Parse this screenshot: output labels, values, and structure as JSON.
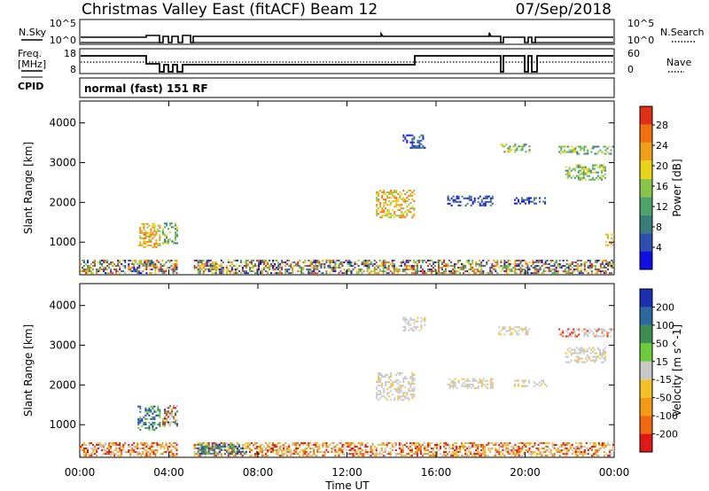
{
  "header": {
    "station": "Christmas Valley East (fitACF)",
    "beam": "Beam 12",
    "date": "07/Sep/2018"
  },
  "status_panels": {
    "nsky_label": "N.Sky",
    "nsearch_label": "N.Search",
    "noise_ticks_left": [
      "10^5",
      "10^0"
    ],
    "noise_ticks_right": [
      "10^5",
      "10^0"
    ],
    "freq_label_line1": "Freq.",
    "freq_label_line2": "[MHz]",
    "freq_ticks": [
      "18",
      "8"
    ],
    "nave_label": "Nave",
    "nave_ticks": [
      "60",
      "0"
    ],
    "cpid_label": "CPID",
    "cpid_value": "normal (fast) 151 RF"
  },
  "colors": {
    "power": [
      "#1010e0",
      "#2d4fb0",
      "#3a7e7a",
      "#4ea36a",
      "#88c34a",
      "#e8d21a",
      "#f0a018",
      "#f07010",
      "#e03018"
    ],
    "velocity": [
      "#1c2fb0",
      "#2a6a9e",
      "#3d8c50",
      "#6ccb3a",
      "#c8c8c8",
      "#f2c028",
      "#f39a18",
      "#ef6a10",
      "#e01818"
    ],
    "line": "#000000"
  },
  "chart_data": [
    {
      "type": "heatmap",
      "title": "",
      "xlabel": "",
      "ylabel": "Slant Range [km]",
      "x_ticks": [
        "00:00",
        "04:00",
        "08:00",
        "12:00",
        "16:00",
        "20:00",
        "00:00"
      ],
      "xlim": [
        0,
        24
      ],
      "ylim": [
        180,
        4550
      ],
      "y_ticks": [
        "1000",
        "2000",
        "3000",
        "4000"
      ],
      "colorbar_label": "Power [dB]",
      "colorbar_ticks": [
        "4",
        "8",
        "12",
        "16",
        "20",
        "24",
        "28"
      ],
      "colorbar_range": [
        0,
        30
      ],
      "regions": [
        {
          "t": [
            0.0,
            24.0
          ],
          "r": [
            200,
            520
          ],
          "level": "mixed"
        },
        {
          "t": [
            2.6,
            3.6
          ],
          "r": [
            850,
            1450
          ],
          "level": "high"
        },
        {
          "t": [
            3.7,
            4.4
          ],
          "r": [
            950,
            1450
          ],
          "level": "mid"
        },
        {
          "t": [
            5.2,
            6.3
          ],
          "r": [
            300,
            430
          ],
          "level": "high"
        },
        {
          "t": [
            13.3,
            15.0
          ],
          "r": [
            1600,
            2300
          ],
          "level": "high"
        },
        {
          "t": [
            16.5,
            18.5
          ],
          "r": [
            1900,
            2150
          ],
          "level": "low"
        },
        {
          "t": [
            18.8,
            20.2
          ],
          "r": [
            3250,
            3450
          ],
          "level": "mid"
        },
        {
          "t": [
            21.5,
            23.9
          ],
          "r": [
            3200,
            3400
          ],
          "level": "mid"
        },
        {
          "t": [
            21.8,
            23.6
          ],
          "r": [
            2550,
            2950
          ],
          "level": "mid"
        },
        {
          "t": [
            19.5,
            21.0
          ],
          "r": [
            1950,
            2100
          ],
          "level": "low"
        },
        {
          "t": [
            14.5,
            15.5
          ],
          "r": [
            3350,
            3700
          ],
          "level": "low"
        },
        {
          "t": [
            23.6,
            24.0
          ],
          "r": [
            900,
            1200
          ],
          "level": "high"
        }
      ]
    },
    {
      "type": "heatmap",
      "title": "",
      "xlabel": "Time UT",
      "ylabel": "Slant Range [km]",
      "x_ticks": [
        "00:00",
        "04:00",
        "08:00",
        "12:00",
        "16:00",
        "20:00",
        "00:00"
      ],
      "xlim": [
        0,
        24
      ],
      "ylim": [
        180,
        4550
      ],
      "y_ticks": [
        "1000",
        "2000",
        "3000",
        "4000"
      ],
      "colorbar_label": "Velocity [m s^-1]",
      "colorbar_ticks": [
        "200",
        "100",
        "50",
        "15",
        "-15",
        "-50",
        "-100",
        "-200"
      ],
      "colorbar_range": [
        -250,
        250
      ],
      "regions": [
        {
          "t": [
            0.0,
            24.0
          ],
          "r": [
            200,
            560
          ],
          "level": "negative"
        },
        {
          "t": [
            2.6,
            3.6
          ],
          "r": [
            850,
            1450
          ],
          "level": "positive"
        },
        {
          "t": [
            3.7,
            4.4
          ],
          "r": [
            950,
            1450
          ],
          "level": "mixed"
        },
        {
          "t": [
            5.2,
            7.5
          ],
          "r": [
            250,
            480
          ],
          "level": "positive"
        },
        {
          "t": [
            13.3,
            15.0
          ],
          "r": [
            1600,
            2300
          ],
          "level": "zero"
        },
        {
          "t": [
            16.5,
            18.5
          ],
          "r": [
            1900,
            2150
          ],
          "level": "zero"
        },
        {
          "t": [
            18.8,
            20.2
          ],
          "r": [
            3250,
            3450
          ],
          "level": "zero"
        },
        {
          "t": [
            21.5,
            23.9
          ],
          "r": [
            3200,
            3400
          ],
          "level": "zero-neg"
        },
        {
          "t": [
            21.8,
            23.6
          ],
          "r": [
            2550,
            2950
          ],
          "level": "zero"
        },
        {
          "t": [
            19.5,
            21.0
          ],
          "r": [
            1950,
            2100
          ],
          "level": "zero"
        },
        {
          "t": [
            14.5,
            15.5
          ],
          "r": [
            3350,
            3700
          ],
          "level": "zero"
        }
      ]
    }
  ]
}
